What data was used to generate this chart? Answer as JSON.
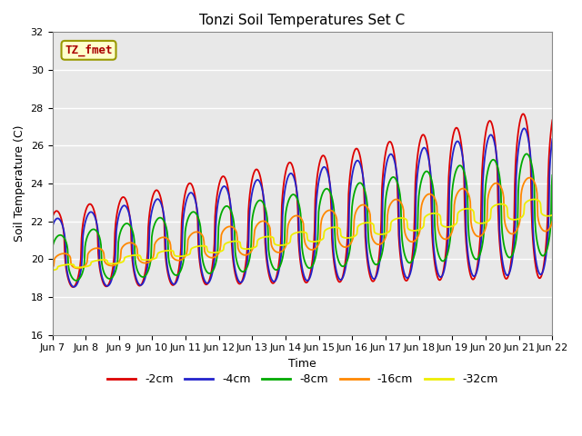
{
  "title": "Tonzi Soil Temperatures Set C",
  "xlabel": "Time",
  "ylabel": "Soil Temperature (C)",
  "annotation": "TZ_fmet",
  "annotation_bg": "#ffffcc",
  "annotation_border": "#999900",
  "annotation_text_color": "#aa0000",
  "ylim": [
    16,
    32
  ],
  "yticks": [
    16,
    18,
    20,
    22,
    24,
    26,
    28,
    30,
    32
  ],
  "fig_bg": "#ffffff",
  "plot_bg": "#e8e8e8",
  "series_colors": [
    "#dd0000",
    "#2222cc",
    "#00aa00",
    "#ff8800",
    "#eeee00"
  ],
  "series_labels": [
    "-2cm",
    "-4cm",
    "-8cm",
    "-16cm",
    "-32cm"
  ],
  "n_days": 15,
  "start_day": 7,
  "points_per_day": 48,
  "grid_color": "#ffffff",
  "tick_fontsize": 8,
  "label_fontsize": 9,
  "title_fontsize": 11
}
